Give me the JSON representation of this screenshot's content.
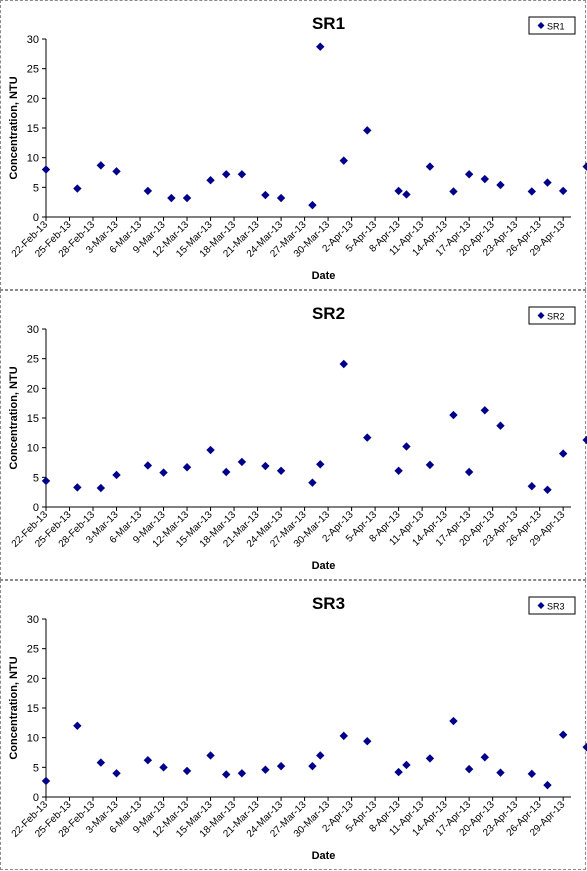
{
  "chart_data": [
    {
      "type": "scatter",
      "title": "SR1",
      "xlabel": "Date",
      "ylabel": "Concentration, NTU",
      "ylim": [
        0,
        30
      ],
      "yticks": [
        "0",
        "5",
        "10",
        "15",
        "20",
        "25",
        "30"
      ],
      "xlim": [
        "2013-02-22",
        "2013-04-30"
      ],
      "xticks": [
        "22-Feb-13",
        "25-Feb-13",
        "28-Feb-13",
        "3-Mar-13",
        "6-Mar-13",
        "9-Mar-13",
        "12-Mar-13",
        "15-Mar-13",
        "18-Mar-13",
        "21-Mar-13",
        "24-Mar-13",
        "27-Mar-13",
        "30-Mar-13",
        "2-Apr-13",
        "5-Apr-13",
        "8-Apr-13",
        "11-Apr-13",
        "14-Apr-13",
        "17-Apr-13",
        "20-Apr-13",
        "23-Apr-13",
        "26-Apr-13",
        "29-Apr-13"
      ],
      "grid": false,
      "legend": "top-right",
      "color": "#00008b",
      "series": [
        {
          "name": "SR1",
          "x": [
            "2013-02-22",
            "2013-02-26",
            "2013-03-01",
            "2013-03-03",
            "2013-03-07",
            "2013-03-10",
            "2013-03-12",
            "2013-03-15",
            "2013-03-17",
            "2013-03-19",
            "2013-03-22",
            "2013-03-24",
            "2013-03-28",
            "2013-03-29",
            "2013-04-01",
            "2013-04-04",
            "2013-04-08",
            "2013-04-09",
            "2013-04-12",
            "2013-04-15",
            "2013-04-17",
            "2013-04-19",
            "2013-04-21",
            "2013-04-25",
            "2013-04-27",
            "2013-04-29",
            "2013-05-02"
          ],
          "y": [
            8,
            4.8,
            8.7,
            7.7,
            4.4,
            3.2,
            3.2,
            6.2,
            7.2,
            7.2,
            3.7,
            3.2,
            2,
            28.7,
            9.5,
            14.6,
            4.4,
            3.8,
            8.5,
            4.3,
            7.2,
            6.4,
            5.4,
            4.3,
            5.8,
            4.4,
            8.5
          ]
        }
      ]
    },
    {
      "type": "scatter",
      "title": "SR2",
      "xlabel": "Date",
      "ylabel": "Concentration, NTU",
      "ylim": [
        0,
        30
      ],
      "yticks": [
        "0",
        "5",
        "10",
        "15",
        "20",
        "25",
        "30"
      ],
      "xlim": [
        "2013-02-22",
        "2013-04-30"
      ],
      "xticks": [
        "22-Feb-13",
        "25-Feb-13",
        "28-Feb-13",
        "3-Mar-13",
        "6-Mar-13",
        "9-Mar-13",
        "12-Mar-13",
        "15-Mar-13",
        "18-Mar-13",
        "21-Mar-13",
        "24-Mar-13",
        "27-Mar-13",
        "30-Mar-13",
        "2-Apr-13",
        "5-Apr-13",
        "8-Apr-13",
        "11-Apr-13",
        "14-Apr-13",
        "17-Apr-13",
        "20-Apr-13",
        "23-Apr-13",
        "26-Apr-13",
        "29-Apr-13"
      ],
      "grid": false,
      "legend": "top-right",
      "color": "#00008b",
      "series": [
        {
          "name": "SR2",
          "x": [
            "2013-02-22",
            "2013-02-26",
            "2013-03-01",
            "2013-03-03",
            "2013-03-07",
            "2013-03-09",
            "2013-03-12",
            "2013-03-15",
            "2013-03-17",
            "2013-03-19",
            "2013-03-22",
            "2013-03-24",
            "2013-03-28",
            "2013-03-29",
            "2013-04-01",
            "2013-04-04",
            "2013-04-08",
            "2013-04-09",
            "2013-04-12",
            "2013-04-15",
            "2013-04-17",
            "2013-04-19",
            "2013-04-21",
            "2013-04-25",
            "2013-04-27",
            "2013-04-29",
            "2013-05-02"
          ],
          "y": [
            4.4,
            3.3,
            3.2,
            5.4,
            7,
            5.8,
            6.7,
            9.6,
            5.9,
            7.6,
            6.9,
            6.1,
            4.1,
            7.2,
            24.1,
            11.7,
            6.1,
            10.2,
            7.1,
            15.5,
            5.9,
            16.3,
            13.7,
            3.5,
            2.9,
            9,
            11.3
          ]
        }
      ]
    },
    {
      "type": "scatter",
      "title": "SR3",
      "xlabel": "Date",
      "ylabel": "Concentration, NTU",
      "ylim": [
        0,
        30
      ],
      "yticks": [
        "0",
        "5",
        "10",
        "15",
        "20",
        "25",
        "30"
      ],
      "xlim": [
        "2013-02-22",
        "2013-04-30"
      ],
      "xticks": [
        "22-Feb-13",
        "25-Feb-13",
        "28-Feb-13",
        "3-Mar-13",
        "6-Mar-13",
        "9-Mar-13",
        "12-Mar-13",
        "15-Mar-13",
        "18-Mar-13",
        "21-Mar-13",
        "24-Mar-13",
        "27-Mar-13",
        "30-Mar-13",
        "2-Apr-13",
        "5-Apr-13",
        "8-Apr-13",
        "11-Apr-13",
        "14-Apr-13",
        "17-Apr-13",
        "20-Apr-13",
        "23-Apr-13",
        "26-Apr-13",
        "29-Apr-13"
      ],
      "grid": false,
      "legend": "top-right",
      "color": "#00008b",
      "series": [
        {
          "name": "SR3",
          "x": [
            "2013-02-22",
            "2013-02-26",
            "2013-03-01",
            "2013-03-03",
            "2013-03-07",
            "2013-03-09",
            "2013-03-12",
            "2013-03-15",
            "2013-03-17",
            "2013-03-19",
            "2013-03-22",
            "2013-03-24",
            "2013-03-28",
            "2013-03-29",
            "2013-04-01",
            "2013-04-04",
            "2013-04-08",
            "2013-04-09",
            "2013-04-12",
            "2013-04-15",
            "2013-04-17",
            "2013-04-19",
            "2013-04-21",
            "2013-04-25",
            "2013-04-27",
            "2013-04-29",
            "2013-05-02"
          ],
          "y": [
            2.7,
            12,
            5.8,
            4,
            6.2,
            5,
            4.4,
            7,
            3.8,
            4,
            4.6,
            5.2,
            5.2,
            7,
            10.3,
            9.4,
            4.2,
            5.4,
            6.5,
            12.8,
            4.7,
            6.7,
            4.1,
            3.9,
            2,
            10.5,
            8.4
          ]
        }
      ]
    }
  ]
}
